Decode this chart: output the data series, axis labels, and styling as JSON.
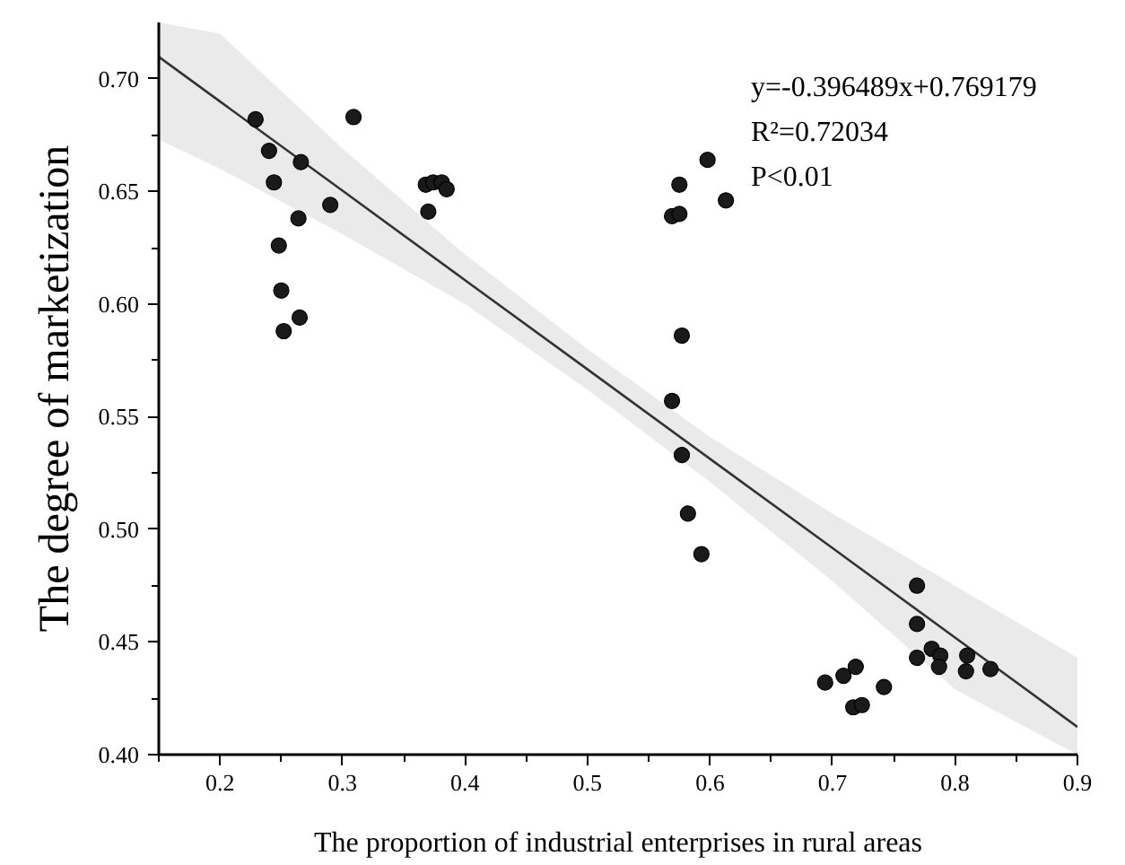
{
  "chart_data": {
    "type": "scatter",
    "xlabel": "The proportion of industrial enterprises in rural areas",
    "ylabel": "The degree of marketization",
    "annotations": [
      "y=-0.396489x+0.769179",
      "R²=0.72034",
      "P<0.01"
    ],
    "xlim": [
      0.15,
      0.9
    ],
    "ylim": [
      0.4,
      0.725
    ],
    "xticks": [
      {
        "value": 0.15,
        "label": null
      },
      0.2,
      {
        "value": 0.25,
        "label": null
      },
      0.3,
      {
        "value": 0.35,
        "label": null
      },
      0.4,
      {
        "value": 0.45,
        "label": null
      },
      0.5,
      {
        "value": 0.55,
        "label": null
      },
      0.6,
      {
        "value": 0.65,
        "label": null
      },
      0.7,
      {
        "value": 0.75,
        "label": null
      },
      0.8,
      {
        "value": 0.85,
        "label": null
      },
      0.9
    ],
    "yticks": [
      {
        "value": 0.4,
        "label": "0.40"
      },
      {
        "value": 0.425,
        "label": null
      },
      {
        "value": 0.45,
        "label": "0.45"
      },
      {
        "value": 0.475,
        "label": null
      },
      {
        "value": 0.5,
        "label": "0.50"
      },
      {
        "value": 0.525,
        "label": null
      },
      {
        "value": 0.55,
        "label": "0.55"
      },
      {
        "value": 0.575,
        "label": null
      },
      {
        "value": 0.6,
        "label": "0.60"
      },
      {
        "value": 0.625,
        "label": null
      },
      {
        "value": 0.65,
        "label": "0.65"
      },
      {
        "value": 0.675,
        "label": null
      },
      {
        "value": 0.7,
        "label": "0.70"
      }
    ],
    "grid": false,
    "series": [
      {
        "type": "line",
        "color": "#333333",
        "line_style": "solid",
        "marker": "none",
        "x": [
          0.15,
          0.2,
          0.3,
          0.4,
          0.5,
          0.6,
          0.7,
          0.8,
          0.9
        ],
        "values": [
          0.7097,
          0.6899,
          0.6503,
          0.6106,
          0.571,
          0.5313,
          0.4917,
          0.452,
          0.4123
        ],
        "lower": [
          0.673,
          0.66,
          0.631,
          0.6,
          0.562,
          0.521,
          0.477,
          0.429,
          0.4
        ],
        "upper": [
          0.725,
          0.72,
          0.669,
          0.622,
          0.58,
          0.541,
          0.507,
          0.475,
          0.443
        ]
      },
      {
        "color": "#1a1a1a",
        "marker": "circle",
        "x": [
          0.229,
          0.24,
          0.266,
          0.244,
          0.29,
          0.264,
          0.248,
          0.25,
          0.265,
          0.252,
          0.309,
          0.368,
          0.374,
          0.381,
          0.385,
          0.37,
          0.598,
          0.575,
          0.613,
          0.569,
          0.575,
          0.577,
          0.569,
          0.577,
          0.582,
          0.593,
          0.769,
          0.769,
          0.769,
          0.781,
          0.788,
          0.787,
          0.81,
          0.809,
          0.829,
          0.694,
          0.709,
          0.719,
          0.742,
          0.717,
          0.724
        ],
        "values": [
          0.682,
          0.668,
          0.663,
          0.654,
          0.644,
          0.638,
          0.626,
          0.606,
          0.594,
          0.588,
          0.683,
          0.653,
          0.654,
          0.654,
          0.651,
          0.641,
          0.664,
          0.653,
          0.646,
          0.639,
          0.64,
          0.586,
          0.557,
          0.533,
          0.507,
          0.489,
          0.475,
          0.458,
          0.443,
          0.447,
          0.444,
          0.439,
          0.444,
          0.437,
          0.438,
          0.432,
          0.435,
          0.439,
          0.43,
          0.421,
          0.422
        ]
      }
    ]
  }
}
